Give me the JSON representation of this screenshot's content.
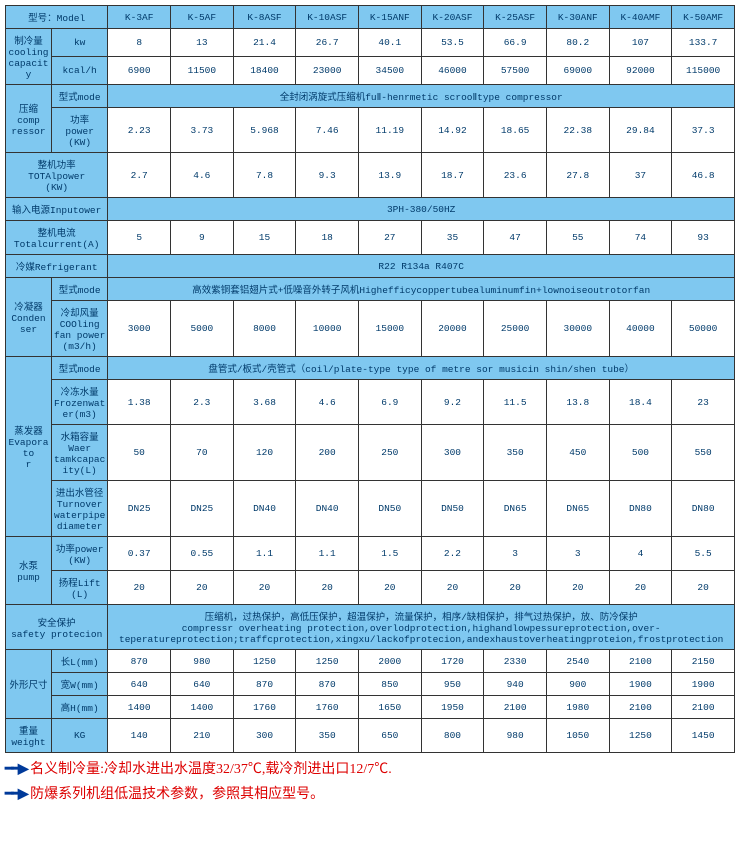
{
  "models": [
    "K-3AF",
    "K-5AF",
    "K-8ASF",
    "K-10ASF",
    "K-15ANF",
    "K-20ASF",
    "K-25ASF",
    "K-30ANF",
    "K-40AMF",
    "K-50AMF"
  ],
  "labels": {
    "model": "型号：Model",
    "cooling": "制冷量\ncooling\ncapacity",
    "kw": "kw",
    "kcal": "kcal/h",
    "compressor": "压缩\ncomp\nressor",
    "mode": "型式mode",
    "power": "功率\npower\n(KW)",
    "totalpower": "整机功率\nTOTAlpower\n(KW)",
    "inputpower": "输入电源Inputower",
    "totalcurrent": "整机电流\nTotalcurrent(A)",
    "refrigerant": "冷媒Refrigerant",
    "condenser": "冷凝器\nConden\nser",
    "coolingfan": "冷却风量\nCOOling\nfan power\n(m3/h)",
    "evaporator": "蒸发器\nEvaporato\nr",
    "frozen": "冷冻水量\nFrozenwat\ner(m3)",
    "tank": "水箱容量\nWaer\ntamkcapac\nity(L)",
    "pipedia": "进出水管径\nTurnover\nwaterpipe\ndiameter",
    "pump": "水泵\npump",
    "pumppower": "功率power\n(KW)",
    "lift": "扬程Lift\n(L)",
    "safety": "安全保护\nsafety protecion",
    "dim": "外形尺寸",
    "len": "长L(mm)",
    "wid": "宽W(mm)",
    "hei": "高H(mm)",
    "weight": "重量\nweight",
    "kg": "KG"
  },
  "rows": {
    "kw": [
      "8",
      "13",
      "21.4",
      "26.7",
      "40.1",
      "53.5",
      "66.9",
      "80.2",
      "107",
      "133.7"
    ],
    "kcal": [
      "6900",
      "11500",
      "18400",
      "23000",
      "34500",
      "46000",
      "57500",
      "69000",
      "92000",
      "115000"
    ],
    "comp_mode": "全封闭涡旋式压缩机fuⅡ-henrmetic scrooⅡtype compressor",
    "comp_pw": [
      "2.23",
      "3.73",
      "5.968",
      "7.46",
      "11.19",
      "14.92",
      "18.65",
      "22.38",
      "29.84",
      "37.3"
    ],
    "total_pw": [
      "2.7",
      "4.6",
      "7.8",
      "9.3",
      "13.9",
      "18.7",
      "23.6",
      "27.8",
      "37",
      "46.8"
    ],
    "input": "3PH-380/50HZ",
    "current": [
      "5",
      "9",
      "15",
      "18",
      "27",
      "35",
      "47",
      "55",
      "74",
      "93"
    ],
    "refrigerant": "R22 R134a R407C",
    "cond_mode": "高效紫铜套铝翅片式+低噪音外转子风机Highefficycoppertubealuminumfin+lownoiseoutrotorfan",
    "cond_fan": [
      "3000",
      "5000",
      "8000",
      "10000",
      "15000",
      "20000",
      "25000",
      "30000",
      "40000",
      "50000"
    ],
    "evap_mode": "盘管式/板式/壳管式（coil/plate-type type of metre sor musicin shin/shen tube）",
    "frozen": [
      "1.38",
      "2.3",
      "3.68",
      "4.6",
      "6.9",
      "9.2",
      "11.5",
      "13.8",
      "18.4",
      "23"
    ],
    "tank": [
      "50",
      "70",
      "120",
      "200",
      "250",
      "300",
      "350",
      "450",
      "500",
      "550"
    ],
    "pipe": [
      "DN25",
      "DN25",
      "DN40",
      "DN40",
      "DN50",
      "DN50",
      "DN65",
      "DN65",
      "DN80",
      "DN80"
    ],
    "pump_pw": [
      "0.37",
      "0.55",
      "1.1",
      "1.1",
      "1.5",
      "2.2",
      "3",
      "3",
      "4",
      "5.5"
    ],
    "lift": [
      "20",
      "20",
      "20",
      "20",
      "20",
      "20",
      "20",
      "20",
      "20",
      "20"
    ],
    "safety": "压缩机，过热保护，高低压保护，超温保护，流量保护，相序/缺相保护，排气过热保护，放、防冷保护\ncompressr overheating protection,overlodprotection,highandlowpessureprotection,over-teperatureprotection;traffcprotection,xingxu/lackofprotecion,andexhaustoverheatingproteion,frostprotection",
    "len": [
      "870",
      "980",
      "1250",
      "1250",
      "2000",
      "1720",
      "2330",
      "2540",
      "2100",
      "2150"
    ],
    "wid": [
      "640",
      "640",
      "870",
      "870",
      "850",
      "950",
      "940",
      "900",
      "1900",
      "1900"
    ],
    "hei": [
      "1400",
      "1400",
      "1760",
      "1760",
      "1650",
      "1950",
      "2100",
      "1980",
      "2100",
      "2100"
    ],
    "weight": [
      "140",
      "210",
      "300",
      "350",
      "650",
      "800",
      "980",
      "1050",
      "1250",
      "1450"
    ]
  },
  "notes": [
    "名义制冷量:冷却水进出水温度32/37℃,载冷剂进出口12/7℃.",
    "防爆系列机组低温技术参数，参照其相应型号。"
  ]
}
